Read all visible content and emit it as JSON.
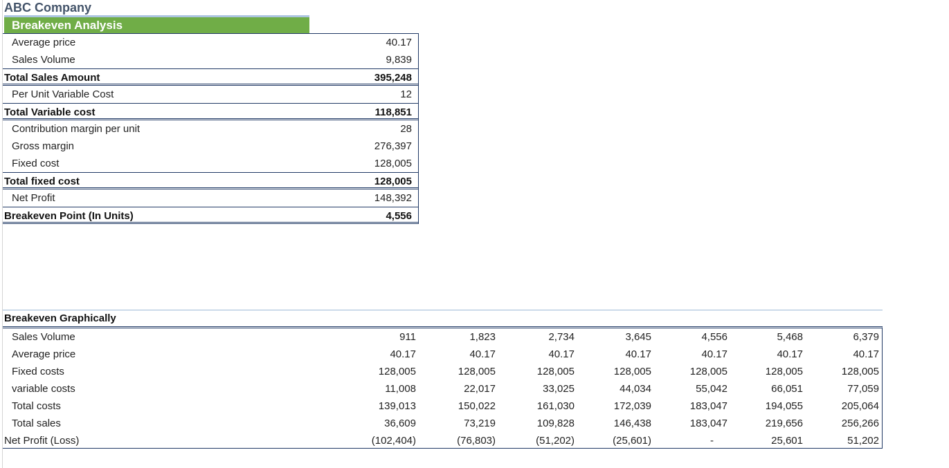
{
  "header": {
    "company": "ABC Company",
    "title": "Breakeven Analysis"
  },
  "summary": {
    "rows": [
      {
        "label": "Average price",
        "value": "40.17",
        "total": false
      },
      {
        "label": "Sales Volume",
        "value": "9,839",
        "total": false
      },
      {
        "label": "Total Sales Amount",
        "value": "395,248",
        "total": true
      },
      {
        "label": "Per Unit Variable Cost",
        "value": "12",
        "total": false
      },
      {
        "label": "Total Variable cost",
        "value": "118,851",
        "total": true
      },
      {
        "label": "Contribution margin per unit",
        "value": "28",
        "total": false
      },
      {
        "label": "Gross margin",
        "value": "276,397",
        "total": false
      },
      {
        "label": "Fixed cost",
        "value": "128,005",
        "total": false
      },
      {
        "label": "Total fixed cost",
        "value": "128,005",
        "total": true
      },
      {
        "label": "Net Profit",
        "value": "148,392",
        "total": false
      },
      {
        "label": "Breakeven Point (In Units)",
        "value": "4,556",
        "total": true
      }
    ]
  },
  "graphical": {
    "title": "Breakeven Graphically",
    "rows": [
      {
        "label": "Sales Volume",
        "values": [
          "911",
          "1,823",
          "2,734",
          "3,645",
          "4,556",
          "5,468",
          "6,379"
        ]
      },
      {
        "label": "Average price",
        "values": [
          "40.17",
          "40.17",
          "40.17",
          "40.17",
          "40.17",
          "40.17",
          "40.17"
        ]
      },
      {
        "label": "Fixed costs",
        "values": [
          "128,005",
          "128,005",
          "128,005",
          "128,005",
          "128,005",
          "128,005",
          "128,005"
        ]
      },
      {
        "label": "variable costs",
        "values": [
          "11,008",
          "22,017",
          "33,025",
          "44,034",
          "55,042",
          "66,051",
          "77,059"
        ]
      },
      {
        "label": "Total costs",
        "values": [
          "139,013",
          "150,022",
          "161,030",
          "172,039",
          "183,047",
          "194,055",
          "205,064"
        ]
      },
      {
        "label": "Total sales",
        "values": [
          "36,609",
          "73,219",
          "109,828",
          "146,438",
          "183,047",
          "219,656",
          "256,266"
        ]
      },
      {
        "label": "Net Profit (Loss)",
        "values": [
          "(102,404)",
          "(76,803)",
          "(51,202)",
          "(25,601)",
          "-",
          "25,601",
          "51,202"
        ]
      }
    ]
  }
}
